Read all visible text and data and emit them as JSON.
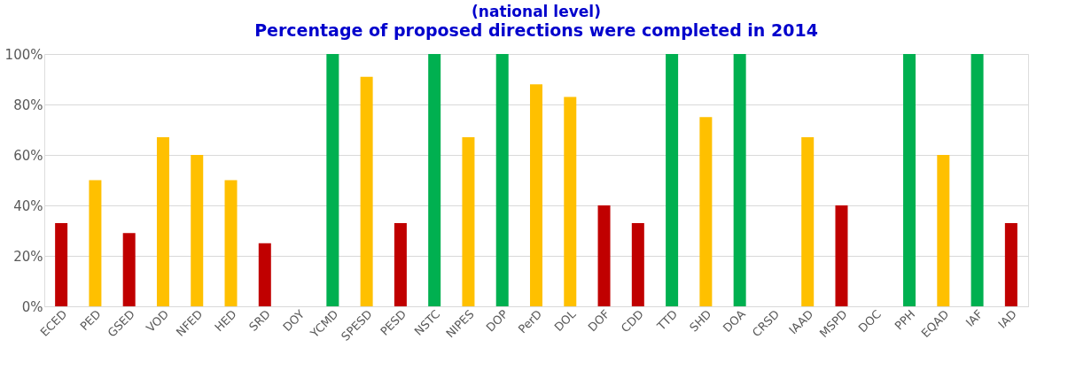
{
  "chart_data": {
    "type": "bar",
    "title": "(national level)",
    "subtitle": "Percentage of proposed directions were completed in 2014",
    "categories": [
      "ECED",
      "PED",
      "GSED",
      "VOD",
      "NFED",
      "HED",
      "SRD",
      "DOY",
      "YCMD",
      "SPESD",
      "PESD",
      "NSTC",
      "NIPES",
      "DOP",
      "PerD",
      "DOL",
      "DOF",
      "CDD",
      "TTD",
      "SHD",
      "DOA",
      "CRSD",
      "IAAD",
      "MSPD",
      "DOC",
      "PPH",
      "EQAD",
      "IAF",
      "IAD"
    ],
    "values": [
      33,
      50,
      29,
      67,
      60,
      50,
      25,
      null,
      100,
      91,
      33,
      100,
      67,
      100,
      88,
      83,
      40,
      33,
      100,
      75,
      100,
      null,
      67,
      40,
      null,
      100,
      60,
      100,
      33
    ],
    "colors": [
      "#c00000",
      "#ffc000",
      "#c00000",
      "#ffc000",
      "#ffc000",
      "#ffc000",
      "#c00000",
      "#c00000",
      "#00b050",
      "#ffc000",
      "#c00000",
      "#00b050",
      "#ffc000",
      "#00b050",
      "#ffc000",
      "#ffc000",
      "#c00000",
      "#c00000",
      "#00b050",
      "#ffc000",
      "#00b050",
      "#c00000",
      "#ffc000",
      "#c00000",
      "#c00000",
      "#00b050",
      "#ffc000",
      "#00b050",
      "#c00000"
    ],
    "ylim": [
      0,
      100
    ],
    "yticks": [
      {
        "value": 0,
        "label": "0%"
      },
      {
        "value": 20,
        "label": "20%"
      },
      {
        "value": 40,
        "label": "40%"
      },
      {
        "value": 60,
        "label": "60%"
      },
      {
        "value": 80,
        "label": "80%"
      },
      {
        "value": 100,
        "label": "100%"
      }
    ],
    "grid": "y"
  }
}
